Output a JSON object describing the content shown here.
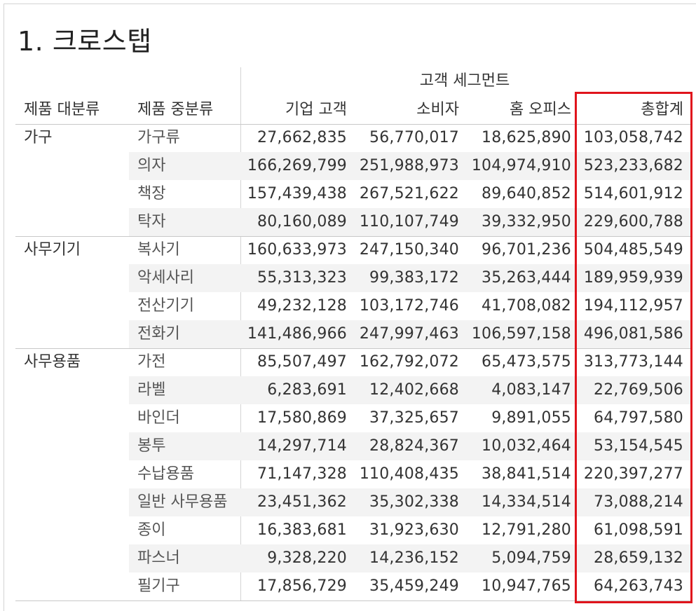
{
  "title": "1. 크로스탭",
  "headers": {
    "row_dim1": "제품 대분류",
    "row_dim2": "제품 중분류",
    "column_group": "고객 세그먼트",
    "columns": [
      "기업 고객",
      "소비자",
      "홈 오피스",
      "총합계"
    ]
  },
  "highlight_color": "#e0141c",
  "groups": [
    {
      "category": "가구",
      "rows": [
        {
          "sub": "가구류",
          "values": [
            "27,662,835",
            "56,770,017",
            "18,625,890",
            "103,058,742"
          ]
        },
        {
          "sub": "의자",
          "values": [
            "166,269,799",
            "251,988,973",
            "104,974,910",
            "523,233,682"
          ]
        },
        {
          "sub": "책장",
          "values": [
            "157,439,438",
            "267,521,622",
            "89,640,852",
            "514,601,912"
          ]
        },
        {
          "sub": "탁자",
          "values": [
            "80,160,089",
            "110,107,749",
            "39,332,950",
            "229,600,788"
          ]
        }
      ]
    },
    {
      "category": "사무기기",
      "rows": [
        {
          "sub": "복사기",
          "values": [
            "160,633,973",
            "247,150,340",
            "96,701,236",
            "504,485,549"
          ]
        },
        {
          "sub": "악세사리",
          "values": [
            "55,313,323",
            "99,383,172",
            "35,263,444",
            "189,959,939"
          ]
        },
        {
          "sub": "전산기기",
          "values": [
            "49,232,128",
            "103,172,746",
            "41,708,082",
            "194,112,957"
          ]
        },
        {
          "sub": "전화기",
          "values": [
            "141,486,966",
            "247,997,463",
            "106,597,158",
            "496,081,586"
          ]
        }
      ]
    },
    {
      "category": "사무용품",
      "rows": [
        {
          "sub": "가전",
          "values": [
            "85,507,497",
            "162,792,072",
            "65,473,575",
            "313,773,144"
          ]
        },
        {
          "sub": "라벨",
          "values": [
            "6,283,691",
            "12,402,668",
            "4,083,147",
            "22,769,506"
          ]
        },
        {
          "sub": "바인더",
          "values": [
            "17,580,869",
            "37,325,657",
            "9,891,055",
            "64,797,580"
          ]
        },
        {
          "sub": "봉투",
          "values": [
            "14,297,714",
            "28,824,367",
            "10,032,464",
            "53,154,545"
          ]
        },
        {
          "sub": "수납용품",
          "values": [
            "71,147,328",
            "110,408,435",
            "38,841,514",
            "220,397,277"
          ]
        },
        {
          "sub": "일반 사무용품",
          "values": [
            "23,451,362",
            "35,302,338",
            "14,334,514",
            "73,088,214"
          ]
        },
        {
          "sub": "종이",
          "values": [
            "16,383,681",
            "31,923,630",
            "12,791,280",
            "61,098,591"
          ]
        },
        {
          "sub": "파스너",
          "values": [
            "9,328,220",
            "14,236,152",
            "5,094,759",
            "28,659,132"
          ]
        },
        {
          "sub": "필기구",
          "values": [
            "17,856,729",
            "35,459,249",
            "10,947,765",
            "64,263,743"
          ]
        }
      ]
    }
  ]
}
